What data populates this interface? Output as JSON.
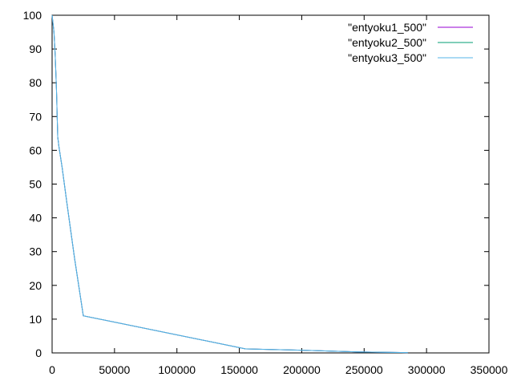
{
  "chart_data": {
    "type": "line",
    "title": "",
    "xlabel": "",
    "ylabel": "",
    "xlim": [
      0,
      350000
    ],
    "ylim": [
      0,
      100
    ],
    "x_ticks": [
      0,
      50000,
      100000,
      150000,
      200000,
      250000,
      300000,
      350000
    ],
    "y_ticks": [
      0,
      10,
      20,
      30,
      40,
      50,
      60,
      70,
      80,
      90,
      100
    ],
    "x_tick_labels": [
      "0",
      "50000",
      "100000",
      "150000",
      "200000",
      "250000",
      "300000",
      "350000"
    ],
    "y_tick_labels": [
      "0",
      "10",
      "20",
      "30",
      "40",
      "50",
      "60",
      "70",
      "80",
      "90",
      "100"
    ],
    "grid": false,
    "legend_position": "top-right",
    "series": [
      {
        "name": "\"entyoku1_500\"",
        "color": "#9400d3",
        "points": [
          [
            0,
            100
          ],
          [
            1500,
            95
          ],
          [
            2500,
            88
          ],
          [
            3500,
            78
          ],
          [
            4500,
            64
          ],
          [
            5500,
            61
          ],
          [
            8000,
            55
          ],
          [
            12000,
            44
          ],
          [
            18000,
            28
          ],
          [
            25000,
            11
          ],
          [
            155000,
            1.2
          ],
          [
            200000,
            0.8
          ],
          [
            245000,
            0.3
          ],
          [
            285000,
            0.1
          ]
        ]
      },
      {
        "name": "\"entyoku2_500\"",
        "color": "#009e73",
        "points": [
          [
            0,
            100
          ],
          [
            1500,
            95
          ],
          [
            2500,
            88
          ],
          [
            3500,
            78
          ],
          [
            4500,
            64
          ],
          [
            5500,
            61
          ],
          [
            8000,
            55
          ],
          [
            12000,
            44
          ],
          [
            18000,
            28
          ],
          [
            25000,
            11
          ],
          [
            155000,
            1.2
          ],
          [
            200000,
            0.8
          ],
          [
            245000,
            0.3
          ],
          [
            285000,
            0.1
          ]
        ]
      },
      {
        "name": "\"entyoku3_500\"",
        "color": "#56b4e9",
        "points": [
          [
            0,
            100
          ],
          [
            1500,
            95
          ],
          [
            2500,
            88
          ],
          [
            3500,
            78
          ],
          [
            4500,
            64
          ],
          [
            5500,
            61
          ],
          [
            8000,
            55
          ],
          [
            12000,
            44
          ],
          [
            18000,
            28
          ],
          [
            25000,
            11
          ],
          [
            155000,
            1.2
          ],
          [
            200000,
            0.8
          ],
          [
            245000,
            0.3
          ],
          [
            285000,
            0.1
          ]
        ]
      }
    ]
  }
}
